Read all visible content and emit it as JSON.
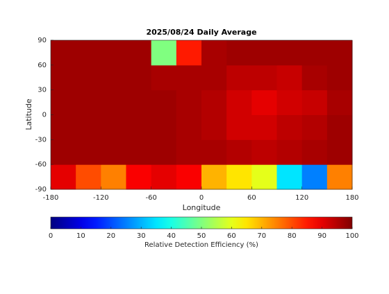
{
  "chart_data": {
    "type": "heatmap",
    "title": "2025/08/24 Daily Average",
    "xlabel": "Longitude",
    "ylabel": "Latitude",
    "xlim": [
      -180,
      180
    ],
    "ylim": [
      -90,
      90
    ],
    "xticks": [
      -180,
      -120,
      -60,
      0,
      60,
      120,
      180
    ],
    "yticks": [
      -90,
      -60,
      -30,
      0,
      30,
      60,
      90
    ],
    "colormap": "jet",
    "xbins": [
      -180,
      -150,
      -120,
      -90,
      -60,
      -30,
      0,
      30,
      60,
      90,
      120,
      150,
      180
    ],
    "ybins": [
      -90,
      -60,
      -30,
      0,
      30,
      60,
      90
    ],
    "z": [
      [
        90,
        80,
        75,
        88,
        90,
        88,
        70,
        65,
        60,
        35,
        25,
        75
      ],
      [
        97,
        97,
        97,
        97,
        97,
        96,
        96,
        95,
        94,
        95,
        96,
        97
      ],
      [
        97,
        97,
        97,
        97,
        97,
        96,
        95,
        92,
        92,
        94,
        95,
        97
      ],
      [
        97,
        97,
        97,
        97,
        97,
        96,
        95,
        92,
        90,
        92,
        93,
        96
      ],
      [
        97,
        97,
        97,
        97,
        96,
        96,
        96,
        94,
        94,
        93,
        96,
        97
      ],
      [
        97,
        97,
        97,
        97,
        50,
        85,
        96,
        97,
        97,
        97,
        97,
        97
      ]
    ],
    "colorbar": {
      "label": "Relative Detection Efficiency (%)",
      "lim": [
        0,
        100
      ],
      "ticks": [
        0,
        10,
        20,
        30,
        40,
        50,
        60,
        70,
        80,
        90,
        100
      ]
    }
  }
}
